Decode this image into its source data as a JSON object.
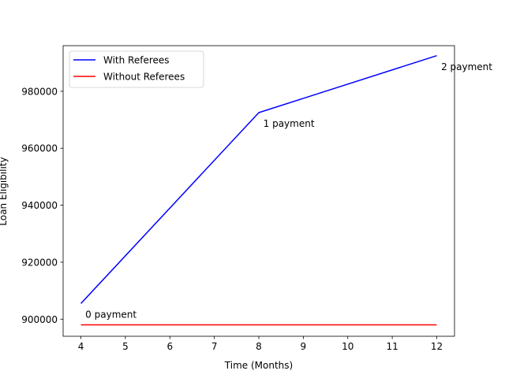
{
  "chart_data": {
    "type": "line",
    "title": "",
    "xlabel": "Time (Months)",
    "ylabel": "Loan Eligibility",
    "xlim": [
      3.6,
      12.4
    ],
    "ylim": [
      894000,
      996000
    ],
    "xticks": [
      4,
      5,
      6,
      7,
      8,
      9,
      10,
      11,
      12
    ],
    "yticks": [
      900000,
      920000,
      940000,
      960000,
      980000
    ],
    "ytick_labels": [
      "900000",
      "920000",
      "940000",
      "960000",
      "980000"
    ],
    "grid": false,
    "legend_position": "upper-left",
    "series": [
      {
        "name": "With Referees",
        "color": "#0000ff",
        "x": [
          4,
          8,
          12
        ],
        "y": [
          905500,
          972500,
          992500
        ]
      },
      {
        "name": "Without Referees",
        "color": "#ff0000",
        "x": [
          4,
          12
        ],
        "y": [
          898000,
          898000
        ]
      }
    ],
    "annotations": [
      {
        "text": "0 payment",
        "x": 4.1,
        "y": 900500
      },
      {
        "text": "1 payment",
        "x": 8.1,
        "y": 967500
      },
      {
        "text": "2 payment",
        "x": 12.1,
        "y": 987500
      }
    ]
  }
}
